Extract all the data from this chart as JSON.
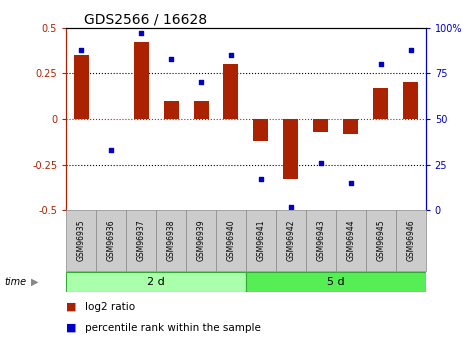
{
  "title": "GDS2566 / 16628",
  "samples": [
    "GSM96935",
    "GSM96936",
    "GSM96937",
    "GSM96938",
    "GSM96939",
    "GSM96940",
    "GSM96941",
    "GSM96942",
    "GSM96943",
    "GSM96944",
    "GSM96945",
    "GSM96946"
  ],
  "log2_ratio": [
    0.35,
    0.0,
    0.42,
    0.1,
    0.1,
    0.3,
    -0.12,
    -0.33,
    -0.07,
    -0.08,
    0.17,
    0.2
  ],
  "percentile_rank": [
    88,
    33,
    97,
    83,
    70,
    85,
    17,
    2,
    26,
    15,
    80,
    88
  ],
  "group1_label": "2 d",
  "group2_label": "5 d",
  "group1_count": 6,
  "group2_count": 6,
  "bar_color": "#AA2200",
  "dot_color": "#0000CC",
  "left_axis_color": "#AA2200",
  "right_axis_color": "#0000CC",
  "ylim_left": [
    -0.5,
    0.5
  ],
  "ylim_right": [
    0,
    100
  ],
  "yticks_left": [
    -0.5,
    -0.25,
    0.0,
    0.25,
    0.5
  ],
  "ytick_labels_left": [
    "-0.5",
    "-0.25",
    "0",
    "0.25",
    "0.5"
  ],
  "yticks_right": [
    0,
    25,
    50,
    75,
    100
  ],
  "ytick_labels_right": [
    "0",
    "25",
    "50",
    "75",
    "100%"
  ],
  "legend_bar_label": "log2 ratio",
  "legend_dot_label": "percentile rank within the sample",
  "time_label": "time",
  "group1_color": "#AAFFAA",
  "group2_color": "#55EE55",
  "bar_width": 0.5,
  "fig_width": 4.73,
  "fig_height": 3.45,
  "fig_dpi": 100
}
